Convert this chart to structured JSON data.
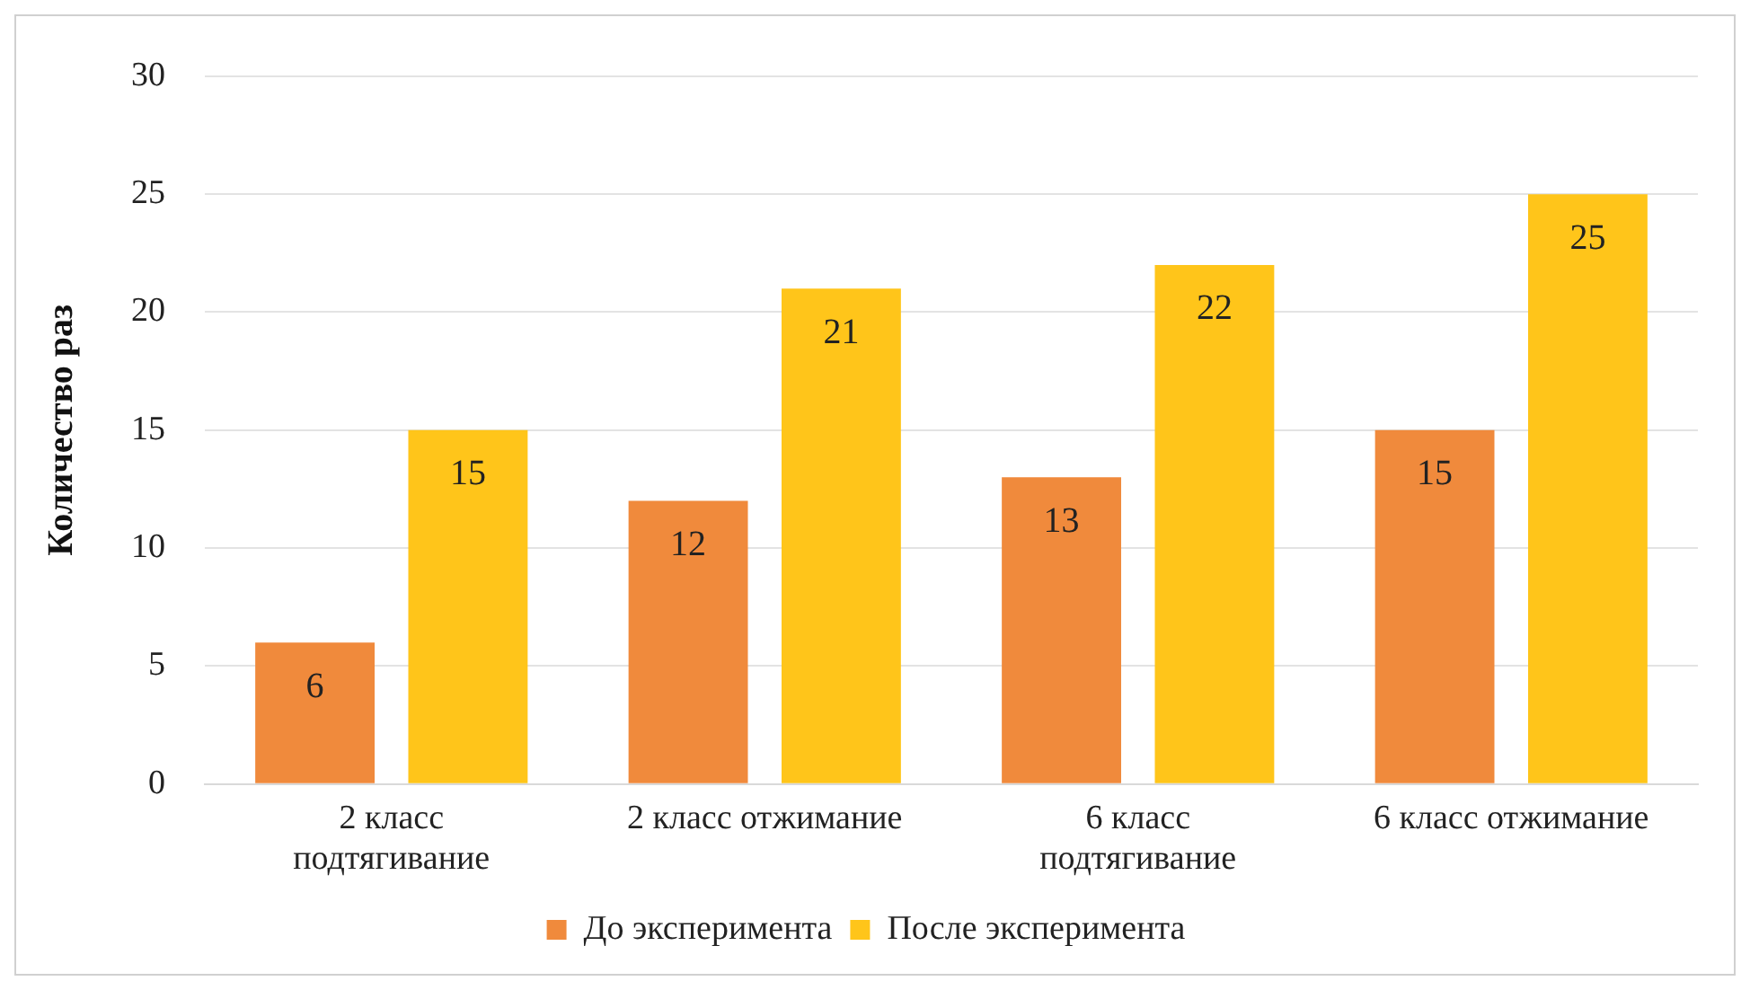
{
  "chart_data": {
    "type": "bar",
    "ylabel": "Количество раз",
    "categories": [
      "2 класс подтягивание",
      "2 класс отжимание",
      "6 класс подтягивание",
      "6 класс отжимание"
    ],
    "series": [
      {
        "name": "До эксперимента",
        "color": "#f08a3c",
        "values": [
          6,
          12,
          13,
          15
        ]
      },
      {
        "name": "После эксперимента",
        "color": "#ffc51a",
        "values": [
          15,
          21,
          22,
          25
        ]
      }
    ],
    "ylim": [
      0,
      30
    ],
    "yticks": [
      0,
      5,
      10,
      15,
      20,
      25,
      30
    ],
    "grid": "y",
    "legend": "bottom",
    "data_labels": true
  }
}
